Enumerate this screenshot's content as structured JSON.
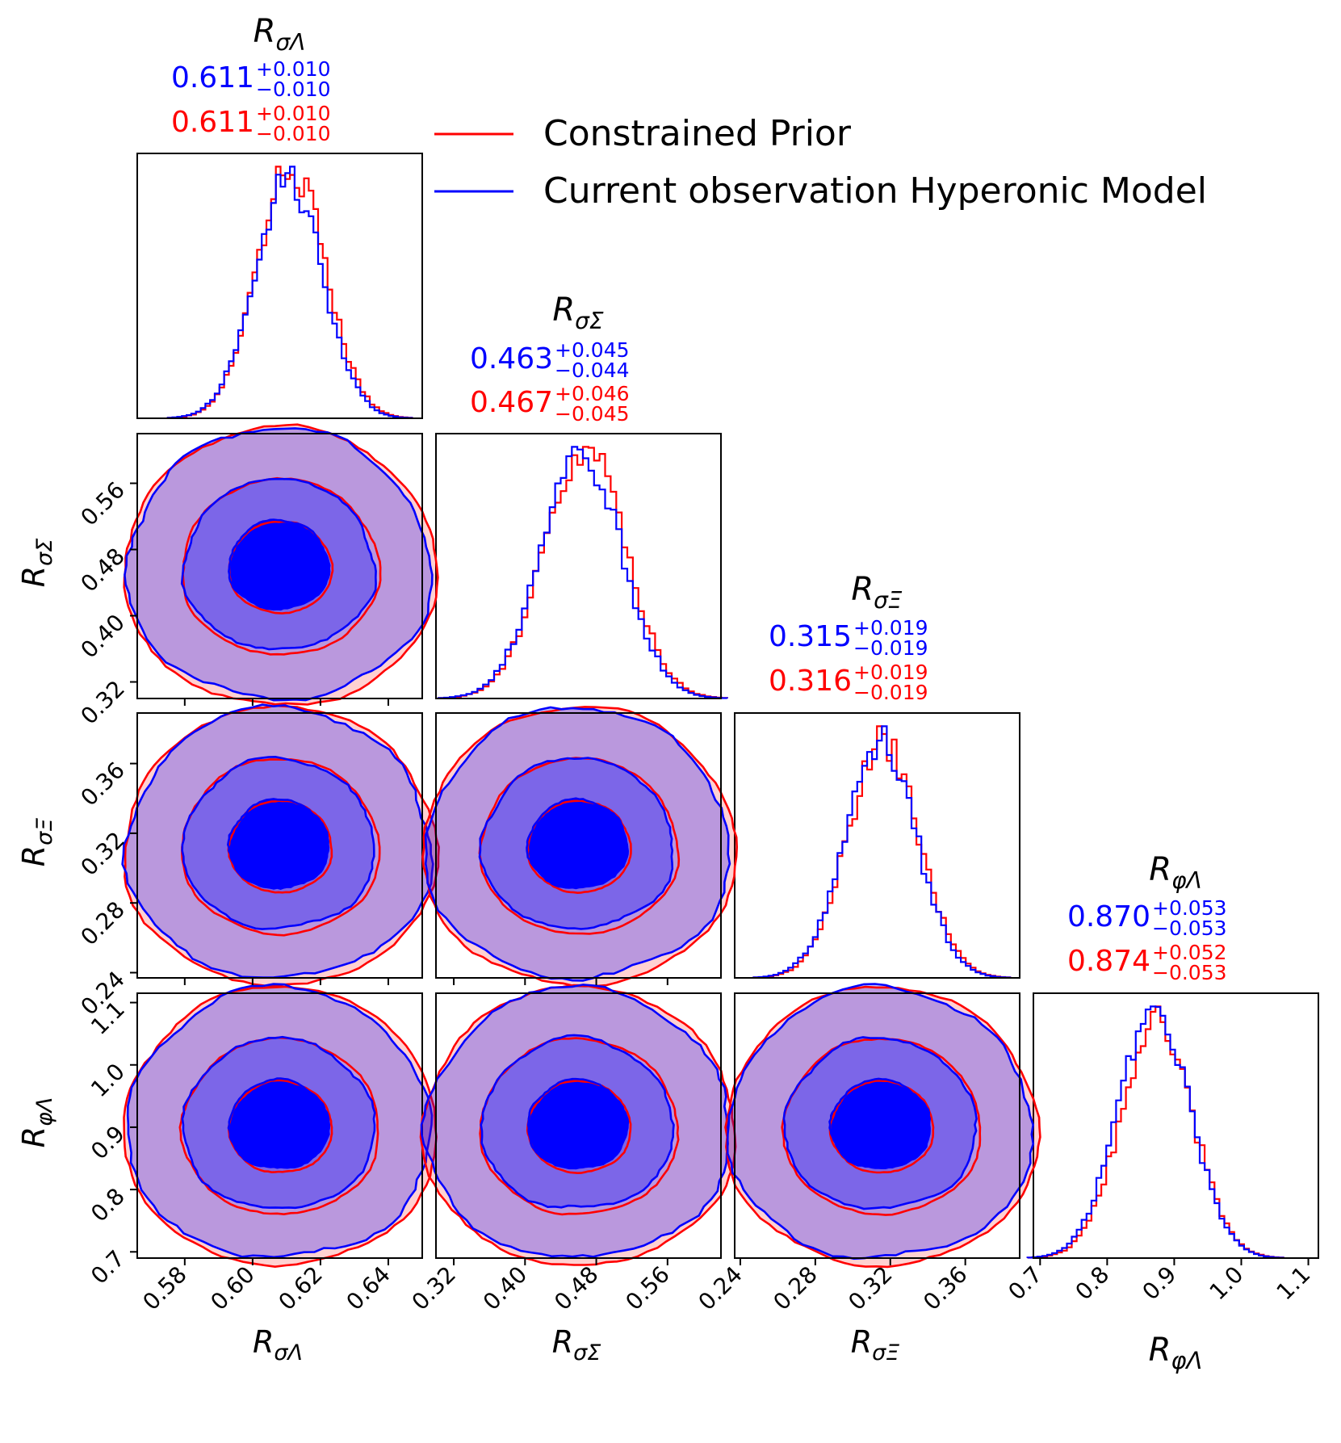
{
  "colors": {
    "prior": "#ff0000",
    "obs": "#0000ff",
    "axis": "#000000"
  },
  "legend": {
    "entries": [
      {
        "label": "Constrained Prior",
        "color": "#ff0000"
      },
      {
        "label": "Current observation Hyperonic Model",
        "color": "#0000ff"
      }
    ],
    "placement": "top-right"
  },
  "chart_data": {
    "type": "corner",
    "params": [
      {
        "key": "sl",
        "symbol": "R",
        "sub": "σΛ",
        "range": [
          0.566,
          0.65
        ],
        "ticks": [
          0.58,
          0.6,
          0.62,
          0.64
        ],
        "tick_labels": [
          "0.58",
          "0.60",
          "0.62",
          "0.64"
        ],
        "blue": {
          "median": "0.611",
          "plus": "+0.010",
          "minus": "−0.010"
        },
        "red": {
          "median": "0.611",
          "plus": "+0.010",
          "minus": "−0.010"
        },
        "mean": 0.611,
        "sd": 0.01
      },
      {
        "key": "ss",
        "symbol": "R",
        "sub": "σΣ",
        "range": [
          0.3,
          0.62
        ],
        "ticks": [
          0.32,
          0.4,
          0.48,
          0.56
        ],
        "tick_labels": [
          "0.32",
          "0.40",
          "0.48",
          "0.56"
        ],
        "blue": {
          "median": "0.463",
          "plus": "+0.045",
          "minus": "−0.044"
        },
        "red": {
          "median": "0.467",
          "plus": "+0.046",
          "minus": "−0.045"
        },
        "mean": 0.465,
        "sd": 0.045
      },
      {
        "key": "sx",
        "symbol": "R",
        "sub": "σΞ",
        "range": [
          0.237,
          0.389
        ],
        "ticks": [
          0.24,
          0.28,
          0.32,
          0.36
        ],
        "tick_labels": [
          "0.24",
          "0.28",
          "0.32",
          "0.36"
        ],
        "blue": {
          "median": "0.315",
          "plus": "+0.019",
          "minus": "−0.019"
        },
        "red": {
          "median": "0.316",
          "plus": "+0.019",
          "minus": "−0.019"
        },
        "mean": 0.3155,
        "sd": 0.019
      },
      {
        "key": "fl",
        "symbol": "R",
        "sub": "φΛ",
        "range": [
          0.69,
          1.115
        ],
        "ticks": [
          0.7,
          0.8,
          0.9,
          1.0,
          1.1
        ],
        "tick_labels": [
          "0.7",
          "0.8",
          "0.9",
          "1.0",
          "1.1"
        ],
        "blue": {
          "median": "0.870",
          "plus": "+0.053",
          "minus": "−0.053"
        },
        "red": {
          "median": "0.874",
          "plus": "+0.052",
          "minus": "−0.053"
        },
        "mean": 0.872,
        "sd": 0.053
      }
    ],
    "diagonal": "1D marginal histograms (step) for each parameter",
    "off_diagonal": "2D credible-region contours (filled, 3 levels) for each parameter pair",
    "series": [
      {
        "name": "Constrained Prior",
        "color": "#ff0000"
      },
      {
        "name": "Current observation Hyperonic Model",
        "color": "#0000ff"
      }
    ]
  }
}
